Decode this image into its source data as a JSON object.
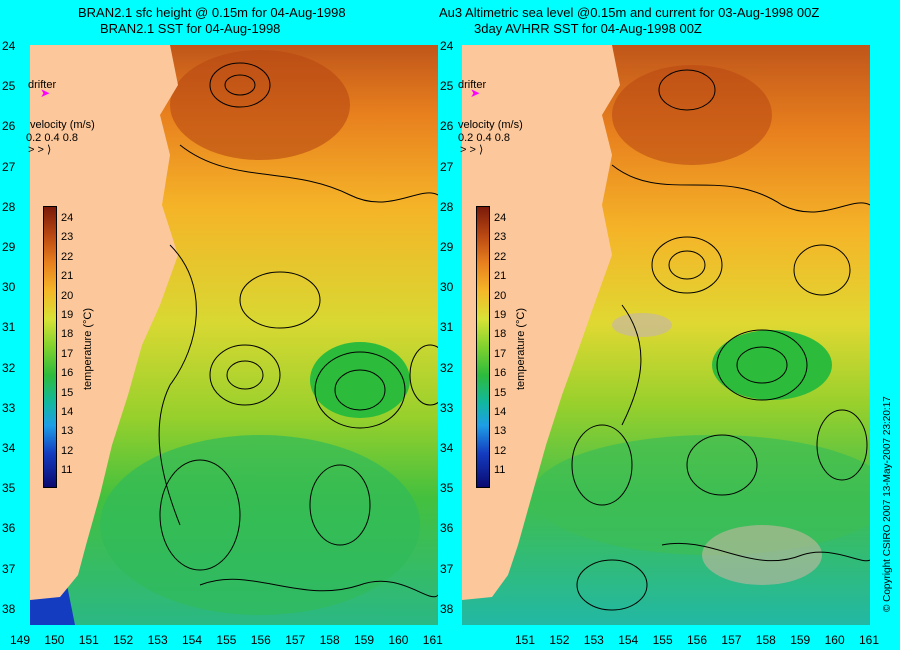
{
  "left_panel": {
    "title_line1": "BRAN2.1 sfc height @ 0.15m for 04-Aug-1998",
    "title_line2": "BRAN2.1 SST for 04-Aug-1998"
  },
  "right_panel": {
    "title_line1": "Au3 Altimetric sea level  @0.15m and current for 03-Aug-1998 00Z",
    "title_line2": "3day AVHRR SST for 04-Aug-1998 00Z"
  },
  "legend": {
    "drifter_label": "drifter",
    "velocity_label": "velocity (m/s)",
    "velocity_values": "0.2 0.4 0.8",
    "temperature_label": "temperature (°C)"
  },
  "colorbar": {
    "ticks": [
      "24",
      "23",
      "22",
      "21",
      "20",
      "19",
      "18",
      "17",
      "16",
      "15",
      "14",
      "13",
      "12",
      "11"
    ],
    "colors": [
      "#7a1a0a",
      "#b84712",
      "#e8801e",
      "#f5b728",
      "#d8e236",
      "#80d22e",
      "#2dbb3c",
      "#12b8a0",
      "#1e9ee6",
      "#143cc0",
      "#0a0a70"
    ]
  },
  "y_ticks": [
    "24",
    "25",
    "26",
    "27",
    "28",
    "29",
    "30",
    "31",
    "32",
    "33",
    "34",
    "35",
    "36",
    "37",
    "38"
  ],
  "left_x_ticks": [
    "149",
    "150",
    "151",
    "152",
    "153",
    "154",
    "155",
    "156",
    "157",
    "158",
    "159",
    "160",
    "161"
  ],
  "right_x_ticks": [
    "151",
    "152",
    "153",
    "154",
    "155",
    "156",
    "157",
    "158",
    "159",
    "160",
    "161"
  ],
  "colors": {
    "land": "#fcc89b",
    "background": "#00ffff",
    "drifter": "#ff00ff"
  },
  "copyright": "© Copyright CSIRO 2007 13-May-2007 23:20:17"
}
